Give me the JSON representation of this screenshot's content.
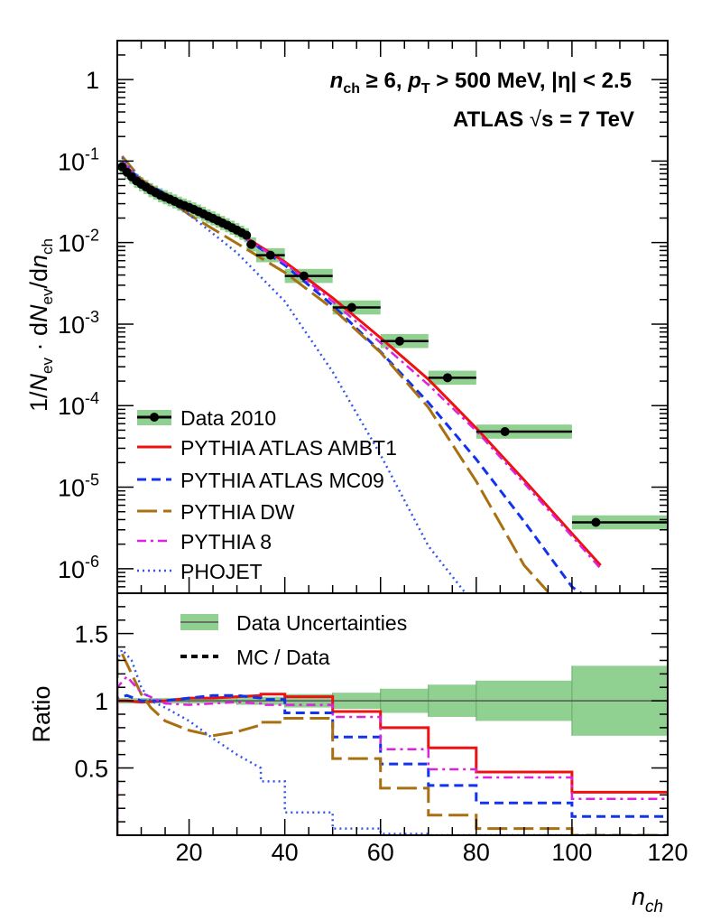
{
  "chart_data": {
    "type": "line",
    "title": "",
    "annotations": {
      "line1": {
        "nch": "n",
        "nch_sub": "ch",
        "cond1": " ≥ 6, ",
        "pt": "p",
        "pt_sub": "T",
        "cond2": " > 500 MeV, |η| < 2.5"
      },
      "line2": {
        "atlas": "ATLAS ",
        "sqrt": "√",
        "s": "s = 7 TeV"
      }
    },
    "xlabel": {
      "main": "n",
      "sub": "ch"
    },
    "ylabel": {
      "prefix": "1/",
      "N": "N",
      "ev": "ev",
      "dot": " · d",
      "N2": "N",
      "ev2": "ev",
      "slash": "/d",
      "n": "n",
      "ch": "ch"
    },
    "ylabel_ratio": "Ratio",
    "xlim": [
      5,
      120
    ],
    "x_ticks": [
      "20",
      "40",
      "60",
      "80",
      "100",
      "120"
    ],
    "x_tick_values": [
      20,
      40,
      60,
      80,
      100,
      120
    ],
    "top": {
      "yscale": "log",
      "ylim": [
        5e-07,
        3
      ],
      "y_ticks": [
        {
          "v": 1,
          "base": "1",
          "exp": ""
        },
        {
          "v": 0.1,
          "base": "10",
          "exp": "-1"
        },
        {
          "v": 0.01,
          "base": "10",
          "exp": "-2"
        },
        {
          "v": 0.001,
          "base": "10",
          "exp": "-3"
        },
        {
          "v": 0.0001,
          "base": "10",
          "exp": "-4"
        },
        {
          "v": 1e-05,
          "base": "10",
          "exp": "-5"
        },
        {
          "v": 1e-06,
          "base": "10",
          "exp": "-6"
        }
      ],
      "data": {
        "name": "Data 2010",
        "color": "#000000",
        "band_color": "#90d090",
        "points": [
          {
            "x": 6,
            "y": 0.085,
            "xlo": 5.5,
            "xhi": 6.5
          },
          {
            "x": 7,
            "y": 0.073,
            "xlo": 6.5,
            "xhi": 7.5
          },
          {
            "x": 8,
            "y": 0.064,
            "xlo": 7.5,
            "xhi": 8.5
          },
          {
            "x": 9,
            "y": 0.057,
            "xlo": 8.5,
            "xhi": 9.5
          },
          {
            "x": 10,
            "y": 0.052,
            "xlo": 9.5,
            "xhi": 10.5
          },
          {
            "x": 11,
            "y": 0.048,
            "xlo": 10.5,
            "xhi": 11.5
          },
          {
            "x": 12,
            "y": 0.044,
            "xlo": 11.5,
            "xhi": 12.5
          },
          {
            "x": 13,
            "y": 0.041,
            "xlo": 12.5,
            "xhi": 13.5
          },
          {
            "x": 14,
            "y": 0.038,
            "xlo": 13.5,
            "xhi": 14.5
          },
          {
            "x": 15,
            "y": 0.036,
            "xlo": 14.5,
            "xhi": 15.5
          },
          {
            "x": 16,
            "y": 0.034,
            "xlo": 15.5,
            "xhi": 16.5
          },
          {
            "x": 17,
            "y": 0.032,
            "xlo": 16.5,
            "xhi": 17.5
          },
          {
            "x": 18,
            "y": 0.03,
            "xlo": 17.5,
            "xhi": 18.5
          },
          {
            "x": 19,
            "y": 0.0285,
            "xlo": 18.5,
            "xhi": 19.5
          },
          {
            "x": 20,
            "y": 0.027,
            "xlo": 19.5,
            "xhi": 20.5
          },
          {
            "x": 21,
            "y": 0.0255,
            "xlo": 20.5,
            "xhi": 21.5
          },
          {
            "x": 22,
            "y": 0.024,
            "xlo": 21.5,
            "xhi": 22.5
          },
          {
            "x": 23,
            "y": 0.0225,
            "xlo": 22.5,
            "xhi": 23.5
          },
          {
            "x": 24,
            "y": 0.021,
            "xlo": 23.5,
            "xhi": 24.5
          },
          {
            "x": 25,
            "y": 0.0198,
            "xlo": 24.5,
            "xhi": 25.5
          },
          {
            "x": 26,
            "y": 0.0186,
            "xlo": 25.5,
            "xhi": 26.5
          },
          {
            "x": 27,
            "y": 0.0174,
            "xlo": 26.5,
            "xhi": 27.5
          },
          {
            "x": 28,
            "y": 0.0163,
            "xlo": 27.5,
            "xhi": 28.5
          },
          {
            "x": 29,
            "y": 0.0152,
            "xlo": 28.5,
            "xhi": 29.5
          },
          {
            "x": 30,
            "y": 0.0142,
            "xlo": 29.5,
            "xhi": 30.5
          },
          {
            "x": 31,
            "y": 0.0132,
            "xlo": 30.5,
            "xhi": 31.5
          },
          {
            "x": 32,
            "y": 0.0123,
            "xlo": 31.5,
            "xhi": 32.5
          },
          {
            "x": 33,
            "y": 0.0095,
            "xlo": 32,
            "xhi": 34
          },
          {
            "x": 37,
            "y": 0.007,
            "xlo": 34,
            "xhi": 40
          },
          {
            "x": 44,
            "y": 0.0039,
            "xlo": 40,
            "xhi": 50
          },
          {
            "x": 54,
            "y": 0.0016,
            "xlo": 50,
            "xhi": 60
          },
          {
            "x": 64,
            "y": 0.00062,
            "xlo": 60,
            "xhi": 70
          },
          {
            "x": 74,
            "y": 0.00022,
            "xlo": 70,
            "xhi": 80
          },
          {
            "x": 86,
            "y": 4.8e-05,
            "xlo": 80,
            "xhi": 100
          },
          {
            "x": 105,
            "y": 3.7e-06,
            "xlo": 100,
            "xhi": 120
          }
        ]
      },
      "series": [
        {
          "name": "PYTHIA ATLAS AMBT1",
          "color": "#ee1111",
          "dash": "",
          "width": 3,
          "x": [
            6,
            10,
            20,
            30,
            40,
            50,
            60,
            70,
            80,
            90,
            100,
            106
          ],
          "y": [
            0.095,
            0.057,
            0.027,
            0.0135,
            0.0058,
            0.0021,
            0.00068,
            0.00021,
            5.3e-05,
            1.22e-05,
            2.7e-06,
            1.1e-06
          ]
        },
        {
          "name": "PYTHIA ATLAS MC09",
          "color": "#1133ee",
          "dash": "10,6",
          "width": 3,
          "x": [
            6,
            10,
            20,
            30,
            40,
            50,
            60,
            70,
            80,
            90,
            100,
            103
          ],
          "y": [
            0.097,
            0.058,
            0.027,
            0.0133,
            0.0053,
            0.0017,
            0.00046,
            0.000109,
            2.2e-05,
            3.8e-06,
            6e-07,
            4.5e-07
          ]
        },
        {
          "name": "PYTHIA DW",
          "color": "#a87010",
          "dash": "22,7",
          "width": 3,
          "x": [
            6,
            10,
            20,
            30,
            40,
            50,
            60,
            70,
            80,
            90,
            95
          ],
          "y": [
            0.115,
            0.06,
            0.022,
            0.0098,
            0.0043,
            0.00155,
            0.00045,
            9.5e-05,
            1.18e-05,
            1.1e-06,
            5.2e-07
          ]
        },
        {
          "name": "PYTHIA 8",
          "color": "#dd22dd",
          "dash": "10,5,3,5",
          "width": 2.5,
          "x": [
            6,
            10,
            20,
            30,
            40,
            50,
            60,
            70,
            80,
            90,
            100,
            106
          ],
          "y": [
            0.1,
            0.056,
            0.026,
            0.0131,
            0.0056,
            0.0019,
            0.00059,
            0.00018,
            4.9e-05,
            1.12e-05,
            2.5e-06,
            1e-06
          ]
        },
        {
          "name": "PHOJET",
          "color": "#3355ee",
          "dash": "2,4",
          "width": 2.5,
          "x": [
            6,
            10,
            20,
            30,
            40,
            50,
            60,
            70,
            78
          ],
          "y": [
            0.11,
            0.058,
            0.022,
            0.0075,
            0.0019,
            0.00026,
            2.5e-05,
            1.9e-06,
            4.8e-07
          ]
        }
      ]
    },
    "bottom": {
      "ylim": [
        0,
        1.8
      ],
      "y_ticks": [
        "0.5",
        "1",
        "1.5"
      ],
      "y_tick_values": [
        0.5,
        1,
        1.5
      ],
      "legend": [
        {
          "label": "Data Uncertainties",
          "kind": "band"
        },
        {
          "label": "MC / Data",
          "kind": "dash"
        }
      ],
      "band": {
        "edges": [
          5,
          20,
          30,
          40,
          50,
          60,
          70,
          80,
          100,
          120
        ],
        "halfwidth": [
          0.02,
          0.02,
          0.03,
          0.05,
          0.06,
          0.09,
          0.12,
          0.15,
          0.26
        ]
      },
      "ratios": [
        {
          "name": "PYTHIA ATLAS AMBT1",
          "color": "#ee1111",
          "dash": "",
          "width": 3,
          "curve_x": [
            5,
            7,
            10,
            15,
            20,
            25,
            30,
            35
          ],
          "curve_y": [
            1.0,
            1.0,
            0.99,
            1.0,
            1.02,
            1.02,
            1.03,
            1.04
          ],
          "edges": [
            35,
            40,
            50,
            60,
            70,
            80,
            100,
            120
          ],
          "vals": [
            1.05,
            1.03,
            0.92,
            0.8,
            0.65,
            0.47,
            0.32
          ]
        },
        {
          "name": "PYTHIA ATLAS MC09",
          "color": "#1133ee",
          "dash": "10,6",
          "width": 3,
          "curve_x": [
            5,
            7,
            10,
            15,
            20,
            25,
            30,
            35
          ],
          "curve_y": [
            1.02,
            1.04,
            1.0,
            1.0,
            1.02,
            1.04,
            1.04,
            1.02
          ],
          "edges": [
            35,
            40,
            50,
            60,
            70,
            80,
            100,
            120
          ],
          "vals": [
            1.01,
            0.91,
            0.73,
            0.53,
            0.37,
            0.24,
            0.14
          ]
        },
        {
          "name": "PYTHIA DW",
          "color": "#a87010",
          "dash": "22,7",
          "width": 3,
          "curve_x": [
            5,
            6,
            8,
            10,
            12,
            15,
            20,
            25,
            30,
            35
          ],
          "curve_y": [
            1.3,
            1.35,
            1.2,
            1.05,
            0.95,
            0.85,
            0.78,
            0.74,
            0.77,
            0.82
          ],
          "edges": [
            35,
            40,
            50,
            60,
            70,
            80,
            100,
            120
          ],
          "vals": [
            0.84,
            0.87,
            0.57,
            0.35,
            0.15,
            0.05,
            0.0
          ]
        },
        {
          "name": "PYTHIA 8",
          "color": "#dd22dd",
          "dash": "10,5,3,5",
          "width": 2.5,
          "curve_x": [
            5,
            7,
            10,
            15,
            20,
            25,
            30,
            35
          ],
          "curve_y": [
            1.1,
            1.18,
            1.06,
            0.98,
            0.97,
            0.98,
            0.99,
            0.98
          ],
          "edges": [
            35,
            40,
            50,
            60,
            70,
            80,
            100,
            120
          ],
          "vals": [
            0.97,
            0.97,
            0.88,
            0.64,
            0.49,
            0.43,
            0.27
          ]
        },
        {
          "name": "PHOJET",
          "color": "#3355ee",
          "dash": "2,4",
          "width": 2.5,
          "curve_x": [
            5,
            6,
            8,
            10,
            12,
            15,
            20,
            25,
            30,
            35
          ],
          "curve_y": [
            1.3,
            1.38,
            1.3,
            1.1,
            1.0,
            0.95,
            0.85,
            0.72,
            0.6,
            0.5
          ],
          "edges": [
            35,
            40,
            50,
            60,
            70,
            80,
            100,
            120
          ],
          "vals": [
            0.4,
            0.17,
            0.05,
            0.01,
            0.0,
            0.0,
            0.0
          ]
        }
      ]
    }
  }
}
